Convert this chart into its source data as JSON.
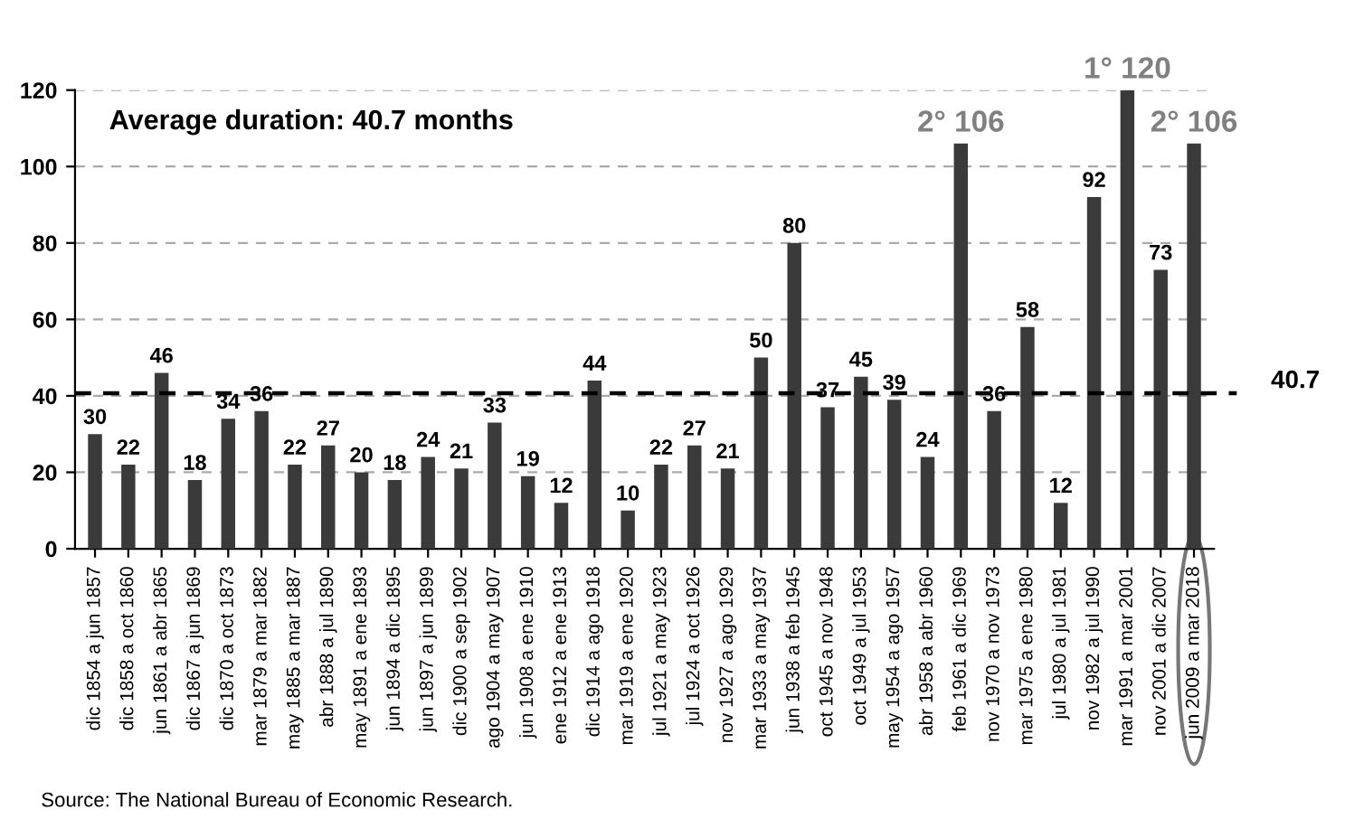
{
  "chart_data": {
    "type": "bar",
    "categories": [
      "dic 1854 a jun 1857",
      "dic 1858 a oct 1860",
      "jun 1861 a abr 1865",
      "dic 1867 a jun 1869",
      "dic 1870 a oct 1873",
      "mar 1879 a mar 1882",
      "may 1885 a mar 1887",
      "abr 1888 a jul 1890",
      "may 1891 a ene 1893",
      "jun 1894 a dic 1895",
      "jun 1897 a jun 1899",
      "dic 1900 a sep 1902",
      "ago 1904 a may 1907",
      "jun 1908 a ene 1910",
      "ene 1912 a ene 1913",
      "dic 1914 a ago 1918",
      "mar 1919 a ene 1920",
      "jul 1921 a may 1923",
      "jul 1924 a oct 1926",
      "nov 1927 a ago 1929",
      "mar 1933 a may 1937",
      "jun 1938 a feb 1945",
      "oct 1945 a nov 1948",
      "oct 1949 a jul 1953",
      "may 1954 a ago 1957",
      "abr 1958 a abr 1960",
      "feb 1961 a dic 1969",
      "nov 1970 a nov 1973",
      "mar 1975 a ene 1980",
      "jul 1980 a jul 1981",
      "nov 1982 a jul 1990",
      "mar 1991 a mar 2001",
      "nov 2001 a dic 2007",
      "jun 2009 a mar 2018"
    ],
    "values": [
      30,
      22,
      46,
      18,
      34,
      36,
      22,
      27,
      20,
      18,
      24,
      21,
      33,
      19,
      12,
      44,
      10,
      22,
      27,
      21,
      50,
      80,
      37,
      45,
      39,
      24,
      106,
      36,
      58,
      12,
      92,
      120,
      73,
      106
    ],
    "value_labels": [
      "30",
      "22",
      "46",
      "18",
      "34",
      "36",
      "22",
      "27",
      "20",
      "18",
      "24",
      "21",
      "33",
      "19",
      "12",
      "44",
      "10",
      "22",
      "27",
      "21",
      "50",
      "80",
      "37",
      "45",
      "39",
      "24",
      "2° 106",
      "36",
      "58",
      "12",
      "92",
      "1° 120",
      "73",
      "2° 106"
    ],
    "color": "#3a3a3a",
    "ylim": [
      0,
      120
    ],
    "yticks": [
      0,
      20,
      40,
      60,
      80,
      100,
      120
    ],
    "grid": "y",
    "ref_lines": [
      {
        "axis": "y",
        "value": 40.7,
        "label": "40.7",
        "line_style": "dashed",
        "color": "#000000"
      }
    ],
    "annotations": [
      "Average duration: 40.7 months",
      "Source: The National Bureau of Economic Research."
    ]
  }
}
